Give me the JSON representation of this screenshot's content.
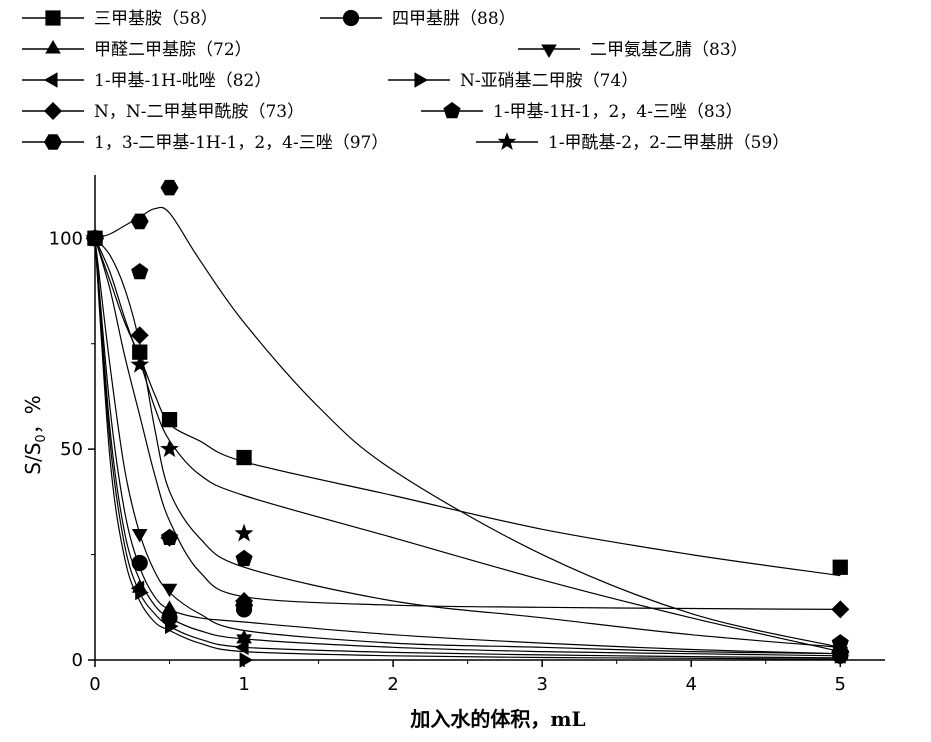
{
  "chart_data": {
    "type": "scatter",
    "title": "",
    "xlabel": "加入水的体积，mL",
    "ylabel": "S/S",
    "ylabel_sub": "0",
    "ylabel_unit": "，%",
    "xlim": [
      0,
      5.3
    ],
    "ylim": [
      0,
      115
    ],
    "xticks": [
      0,
      1,
      2,
      3,
      4,
      5
    ],
    "yticks": [
      0,
      50,
      100
    ],
    "grid": false,
    "legend_position": "top",
    "series": [
      {
        "name": "三甲基胺（58）",
        "marker": "square",
        "x": [
          0,
          0.3,
          0.5,
          1,
          5
        ],
        "y": [
          100,
          73,
          57,
          48,
          22
        ],
        "curve": [
          [
            0,
            100
          ],
          [
            0.1,
            90
          ],
          [
            0.2,
            80
          ],
          [
            0.3,
            72
          ],
          [
            0.4,
            63
          ],
          [
            0.5,
            56
          ],
          [
            0.7,
            52
          ],
          [
            1,
            47
          ],
          [
            2,
            39
          ],
          [
            3,
            31
          ],
          [
            4,
            25
          ],
          [
            5,
            20
          ]
        ]
      },
      {
        "name": "四甲基肼（88）",
        "marker": "circle",
        "x": [
          0,
          0.3,
          0.5,
          1,
          5
        ],
        "y": [
          100,
          23,
          10,
          12,
          1
        ],
        "curve": [
          [
            0,
            100
          ],
          [
            0.1,
            60
          ],
          [
            0.2,
            35
          ],
          [
            0.3,
            22
          ],
          [
            0.4,
            15
          ],
          [
            0.5,
            12
          ],
          [
            0.7,
            10
          ],
          [
            1,
            9
          ],
          [
            2,
            6
          ],
          [
            3,
            4
          ],
          [
            4,
            2.5
          ],
          [
            5,
            1.5
          ]
        ]
      },
      {
        "name": "甲醛二甲基腙（72）",
        "marker": "triangle-up",
        "x": [
          0,
          0.3,
          0.5,
          1,
          5
        ],
        "y": [
          100,
          17,
          12,
          5,
          1
        ],
        "curve": [
          [
            0,
            100
          ],
          [
            0.1,
            55
          ],
          [
            0.2,
            30
          ],
          [
            0.3,
            19
          ],
          [
            0.4,
            13
          ],
          [
            0.5,
            10
          ],
          [
            0.7,
            7
          ],
          [
            1,
            5
          ],
          [
            2,
            3
          ],
          [
            3,
            2
          ],
          [
            4,
            1.5
          ],
          [
            5,
            1
          ]
        ]
      },
      {
        "name": "二甲氨基乙腈（83）",
        "marker": "triangle-down",
        "x": [
          0,
          0.3,
          0.5,
          1,
          5
        ],
        "y": [
          100,
          30,
          17,
          5,
          2
        ],
        "curve": [
          [
            0,
            100
          ],
          [
            0.1,
            70
          ],
          [
            0.2,
            45
          ],
          [
            0.3,
            30
          ],
          [
            0.4,
            21
          ],
          [
            0.5,
            16
          ],
          [
            0.7,
            11
          ],
          [
            1,
            7
          ],
          [
            2,
            4
          ],
          [
            3,
            3
          ],
          [
            4,
            2
          ],
          [
            5,
            1.5
          ]
        ]
      },
      {
        "name": "1-甲基-1H-吡唑（82）",
        "marker": "triangle-left",
        "x": [
          0,
          0.3,
          0.5,
          1,
          5
        ],
        "y": [
          100,
          17,
          10,
          3,
          1
        ],
        "curve": [
          [
            0,
            100
          ],
          [
            0.1,
            52
          ],
          [
            0.2,
            27
          ],
          [
            0.3,
            16
          ],
          [
            0.4,
            11
          ],
          [
            0.5,
            8
          ],
          [
            0.7,
            5
          ],
          [
            1,
            3
          ],
          [
            2,
            1.8
          ],
          [
            3,
            1.2
          ],
          [
            4,
            0.8
          ],
          [
            5,
            0.5
          ]
        ]
      },
      {
        "name": "N-亚硝基二甲胺（74）",
        "marker": "triangle-right",
        "x": [
          0,
          0.3,
          0.5,
          1,
          5
        ],
        "y": [
          100,
          16,
          8,
          0,
          1
        ],
        "curve": [
          [
            0,
            100
          ],
          [
            0.1,
            48
          ],
          [
            0.2,
            24
          ],
          [
            0.3,
            14
          ],
          [
            0.4,
            9
          ],
          [
            0.5,
            7
          ],
          [
            0.7,
            4
          ],
          [
            1,
            2
          ],
          [
            2,
            1
          ],
          [
            3,
            0.6
          ],
          [
            4,
            0.4
          ],
          [
            5,
            0.2
          ]
        ]
      },
      {
        "name": "N，N-二甲基甲酰胺（73）",
        "marker": "diamond",
        "x": [
          0,
          0.3,
          0.5,
          1,
          5
        ],
        "y": [
          100,
          77,
          29,
          14,
          12
        ],
        "curve": [
          [
            0,
            100
          ],
          [
            0.1,
            88
          ],
          [
            0.2,
            72
          ],
          [
            0.3,
            58
          ],
          [
            0.4,
            44
          ],
          [
            0.5,
            33
          ],
          [
            0.7,
            21
          ],
          [
            1,
            15
          ],
          [
            2,
            13
          ],
          [
            3,
            12.5
          ],
          [
            4,
            12.2
          ],
          [
            5,
            12
          ]
        ]
      },
      {
        "name": "1-甲基-1H-1，2，4-三唑（83）",
        "marker": "pentagon",
        "x": [
          0,
          0.3,
          0.5,
          1,
          5
        ],
        "y": [
          100,
          92,
          29,
          24,
          4
        ],
        "curve": [
          [
            0,
            100
          ],
          [
            0.1,
            96
          ],
          [
            0.2,
            88
          ],
          [
            0.3,
            75
          ],
          [
            0.4,
            55
          ],
          [
            0.5,
            40
          ],
          [
            0.7,
            29
          ],
          [
            1,
            22
          ],
          [
            2,
            14
          ],
          [
            3,
            10
          ],
          [
            4,
            6
          ],
          [
            5,
            3
          ]
        ]
      },
      {
        "name": "1，3-二甲基-1H-1，2，4-三唑（97）",
        "marker": "hexagon",
        "x": [
          0,
          0.3,
          0.5,
          1,
          5
        ],
        "y": [
          100,
          104,
          112,
          13,
          2
        ],
        "curve": [
          [
            0,
            100
          ],
          [
            0.1,
            101
          ],
          [
            0.2,
            103
          ],
          [
            0.3,
            105
          ],
          [
            0.4,
            107
          ],
          [
            0.5,
            106
          ],
          [
            0.7,
            95
          ],
          [
            1,
            80
          ],
          [
            1.5,
            60
          ],
          [
            2,
            45
          ],
          [
            3,
            25
          ],
          [
            4,
            11
          ],
          [
            5,
            3
          ]
        ]
      },
      {
        "name": "1-甲酰基-2，2-二甲基肼（59）",
        "marker": "star",
        "x": [
          0,
          0.3,
          0.5,
          1,
          5
        ],
        "y": [
          100,
          70,
          50,
          30,
          1
        ],
        "curve": [
          [
            0,
            100
          ],
          [
            0.1,
            92
          ],
          [
            0.2,
            81
          ],
          [
            0.3,
            71
          ],
          [
            0.4,
            60
          ],
          [
            0.5,
            52
          ],
          [
            0.7,
            44
          ],
          [
            1,
            39
          ],
          [
            2,
            29
          ],
          [
            3,
            19
          ],
          [
            4,
            10
          ],
          [
            5,
            2
          ]
        ]
      }
    ]
  }
}
